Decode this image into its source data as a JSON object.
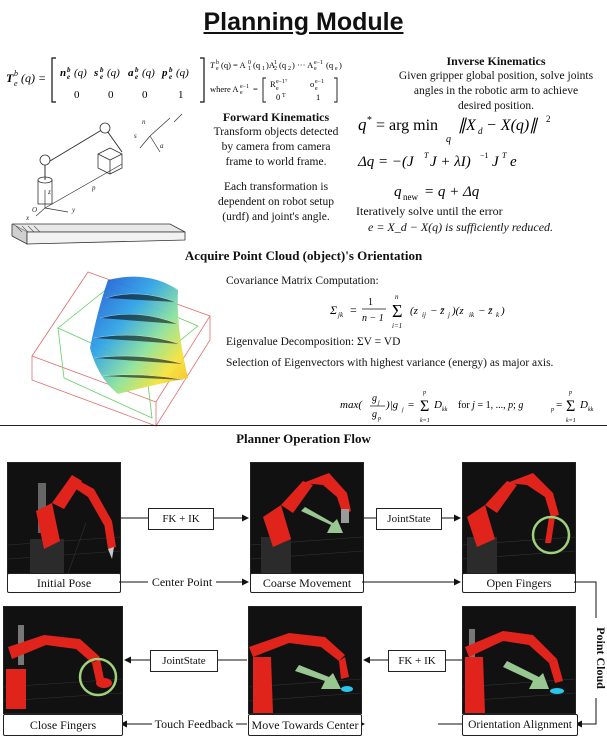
{
  "title": "Planning Module",
  "fk": {
    "title": "Forward Kinematics",
    "desc1": "Transform objects detected by camera from camera frame to world frame.",
    "desc2": "Each transformation is dependent on robot setup (urdf) and joint's angle.",
    "eq_lhs": "T_e^b(q) =",
    "matrix_row1": [
      "n_e^b(q)",
      "s_e^b(q)",
      "a_e^b(q)",
      "p_e^b(q)"
    ],
    "matrix_row2": [
      "0",
      "0",
      "0",
      "1"
    ],
    "chain_eq": "T_e^b(q) = A_1^0(q1) A_2^1(q2) ··· A_e^{e-1}(q_e)",
    "where": "where A_e^{e-1} =",
    "where_mat": [
      "R_e^{e-1T}",
      "o_e^{e-1}",
      "0^T",
      "1"
    ]
  },
  "ik": {
    "title": "Inverse Kinematics",
    "desc": "Given gripper global position, solve joints angles in the robotic arm to achieve desired position.",
    "eq1": "q* = arg min_q ||X_d − X(q)||²",
    "eq2": "Δq = −(JᵀJ + λI)⁻¹ Jᵀe",
    "eq3": "q_new = q + Δq",
    "iter_text": "Iteratively solve until the error",
    "err_text": "e = X_d − X(q) is sufficiently reduced."
  },
  "pc": {
    "title": "Acquire Point Cloud (object)'s Orientation",
    "cov_label": "Covariance Matrix Computation:",
    "cov_eq": "Σ_jk = 1/(n−1) Σ_{i=1}^{n} (z_ij − z̄_j)(z_ik − z̄_k)",
    "eig_label": "Eigenvalue Decomposition: ΣV = VD",
    "sel_label": "Selection of Eigenvectors with highest variance (energy) as major axis.",
    "max_eq": "max(g_j/g_p) | g_j = Σ_{k=1}^{j} D_kk    for j = 1, ..., p; g_p = Σ_{k=1}^{p} D_kk"
  },
  "flow": {
    "title": "Planner Operation Flow",
    "stages": [
      "Initial Pose",
      "Coarse Movement",
      "Open Fingers",
      "Close Fingers",
      "Move Towards Center",
      "Orientation Alignment"
    ],
    "edge_labels": {
      "fk_ik_top": "FK + IK",
      "jointstate_top": "JointState",
      "center_point": "Center Point",
      "point_cloud": "Point Cloud",
      "fk_ik_bottom": "FK + IK",
      "jointstate_bottom": "JointState",
      "touch_feedback": "Touch Feedback"
    }
  },
  "colors": {
    "robot_red": "#e0241b",
    "highlight_green": "#9fd07a",
    "cyan_object": "#27c6ea"
  }
}
